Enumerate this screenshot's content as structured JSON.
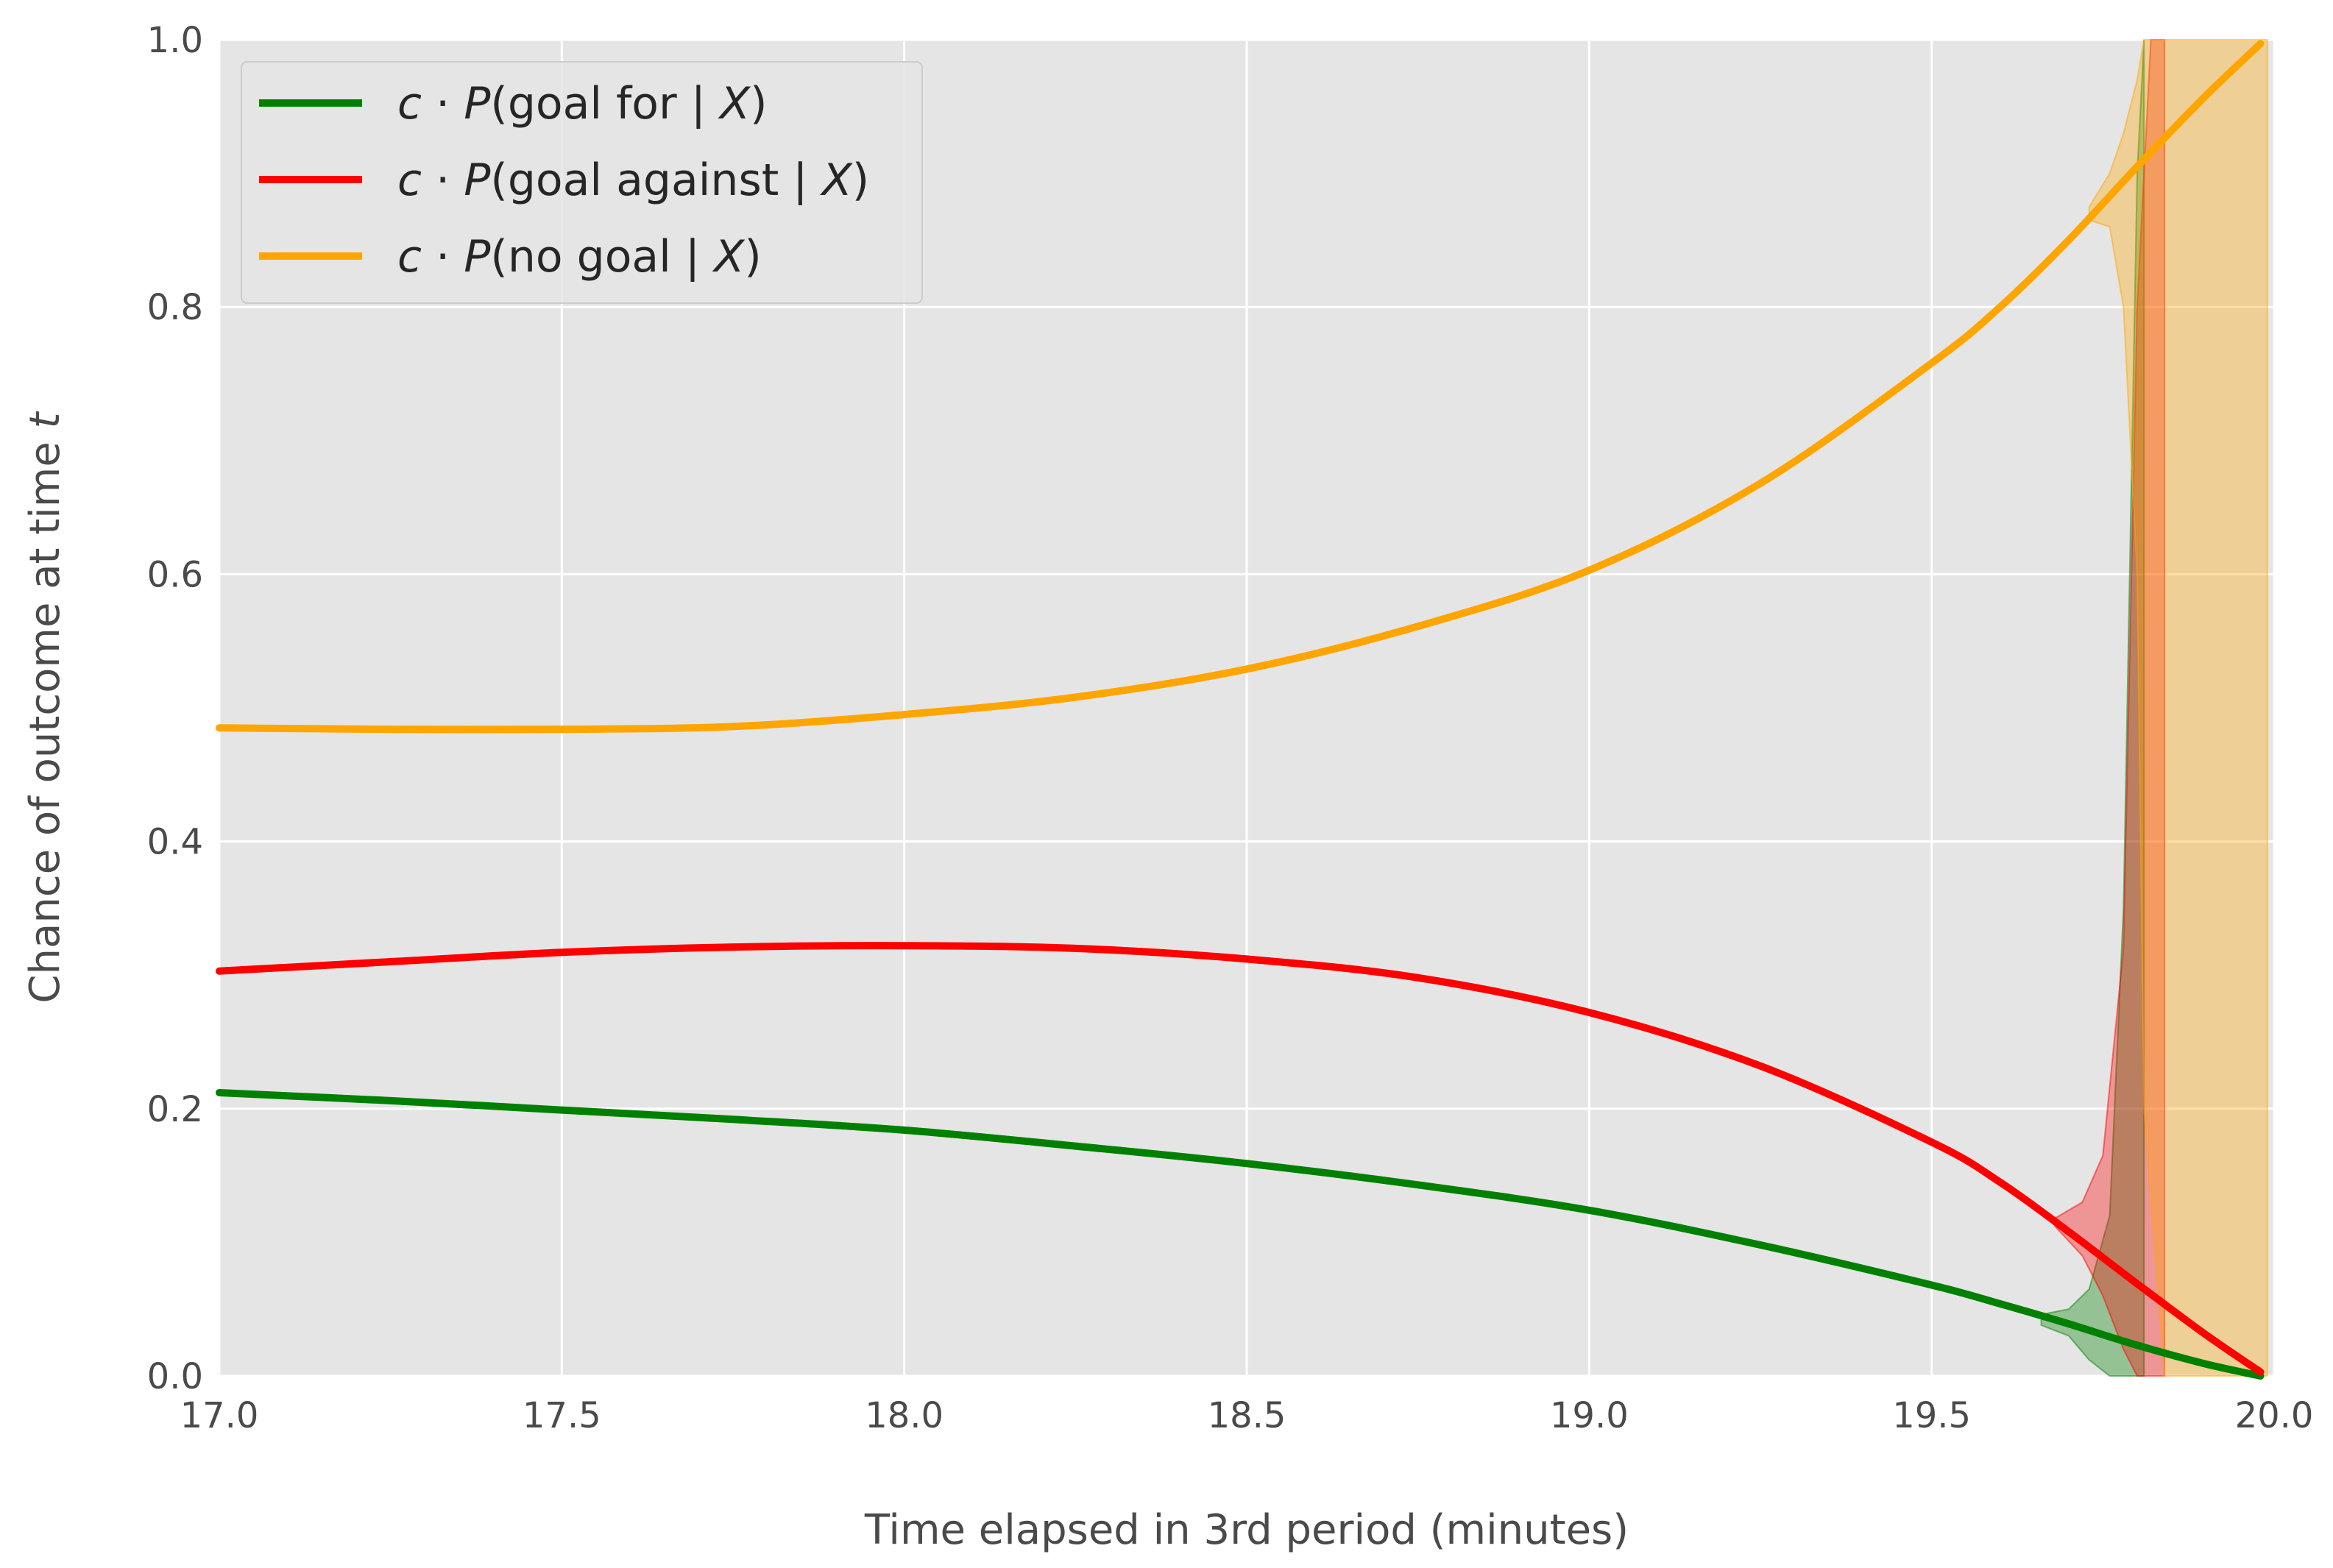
{
  "chart_data": {
    "type": "line",
    "title": "",
    "xlabel": "Time elapsed in 3rd period (minutes)",
    "ylabel": "Chance of outcome at time t",
    "ylabel_parts": {
      "text": "Chance of outcome at time ",
      "var": "t"
    },
    "xlim": [
      17.0,
      20.0
    ],
    "ylim": [
      0.0,
      1.0
    ],
    "x_ticks": [
      "17.0",
      "17.5",
      "18.0",
      "18.5",
      "19.0",
      "19.5",
      "20.0"
    ],
    "y_ticks": [
      "0.0",
      "0.2",
      "0.4",
      "0.6",
      "0.8",
      "1.0"
    ],
    "grid": true,
    "legend_position": "top-left",
    "background": "#e5e5e5",
    "x": [
      17.0,
      17.25,
      17.5,
      17.75,
      18.0,
      18.25,
      18.5,
      18.75,
      19.0,
      19.25,
      19.5,
      19.6,
      19.7,
      19.8,
      19.9,
      19.98
    ],
    "series": [
      {
        "name": "c · P(goal for | X)",
        "legend": {
          "c": "c",
          "p": "P",
          "inner": "(goal for | ",
          "x": "X",
          "close": ")"
        },
        "color": "#008000",
        "values": [
          0.212,
          0.206,
          0.199,
          0.192,
          0.184,
          0.172,
          0.159,
          0.143,
          0.124,
          0.098,
          0.068,
          0.054,
          0.039,
          0.023,
          0.009,
          0.0
        ]
      },
      {
        "name": "c · P(goal against | X)",
        "legend": {
          "c": "c",
          "p": "P",
          "inner": "(goal against | ",
          "x": "X",
          "close": ")"
        },
        "color": "#ff0000",
        "values": [
          0.303,
          0.31,
          0.317,
          0.321,
          0.322,
          0.32,
          0.312,
          0.298,
          0.272,
          0.232,
          0.175,
          0.145,
          0.108,
          0.069,
          0.031,
          0.003
        ]
      },
      {
        "name": "c · P(no goal | X)",
        "legend": {
          "c": "c",
          "p": "P",
          "inner": "(no goal | ",
          "x": "X",
          "close": ")"
        },
        "color": "#ffa500",
        "values": [
          0.485,
          0.484,
          0.484,
          0.486,
          0.495,
          0.508,
          0.529,
          0.561,
          0.603,
          0.668,
          0.758,
          0.8,
          0.85,
          0.905,
          0.958,
          0.997
        ]
      }
    ],
    "uncertainty_bands": [
      {
        "series": "c · P(goal for | X)",
        "color": "#008000",
        "x": [
          19.66,
          19.7,
          19.73,
          19.76,
          19.78,
          19.8,
          19.81
        ],
        "lower": [
          0.038,
          0.03,
          0.012,
          0.0,
          0.0,
          0.0,
          0.0
        ],
        "upper": [
          0.046,
          0.05,
          0.065,
          0.12,
          0.35,
          0.9,
          1.0
        ]
      },
      {
        "series": "c · P(goal against | X)",
        "color": "#ff0000",
        "x": [
          19.68,
          19.72,
          19.75,
          19.78,
          19.8,
          19.82,
          19.84
        ],
        "lower": [
          0.112,
          0.09,
          0.06,
          0.02,
          0.0,
          0.0,
          0.0
        ],
        "upper": [
          0.118,
          0.13,
          0.165,
          0.32,
          0.8,
          1.0,
          1.0
        ]
      },
      {
        "series": "c · P(no goal | X)",
        "color": "#ffa500",
        "x": [
          19.73,
          19.76,
          19.78,
          19.8,
          19.81,
          19.84,
          19.99
        ],
        "lower": [
          0.865,
          0.86,
          0.8,
          0.6,
          0.2,
          0.0,
          0.0
        ],
        "upper": [
          0.875,
          0.9,
          0.93,
          0.97,
          1.0,
          1.0,
          1.0
        ]
      }
    ]
  }
}
